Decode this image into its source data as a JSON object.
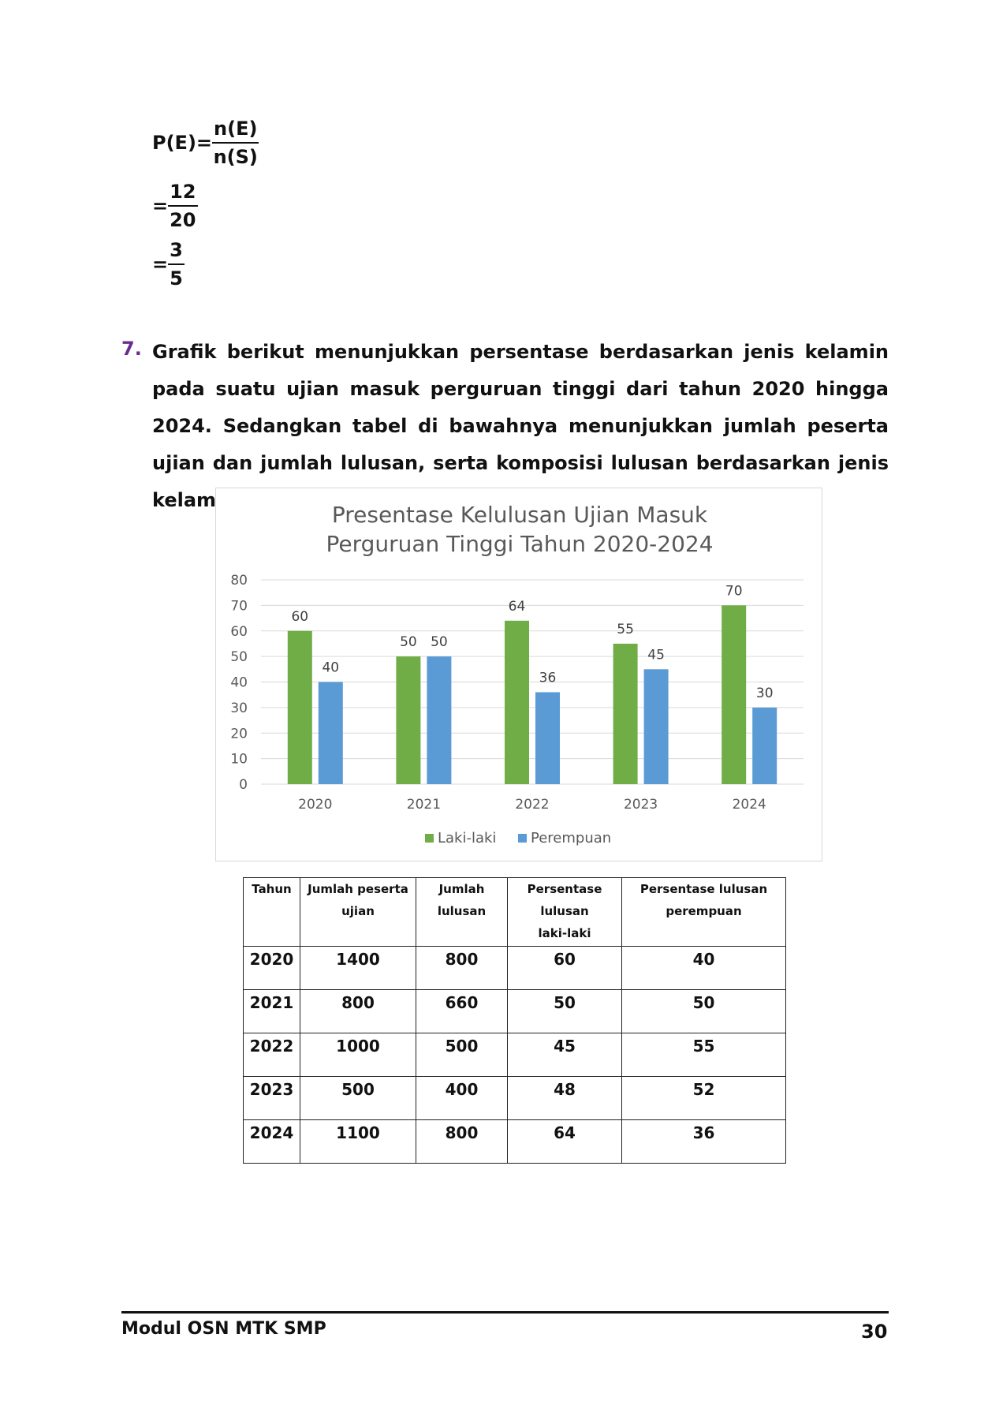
{
  "formula": {
    "lhs": "P(E)=",
    "num1": "n(E)",
    "den1": "n(S)",
    "eq2": "=",
    "num2": "12",
    "den2": "20",
    "eq3": "=",
    "num3": "3",
    "den3": "5"
  },
  "question": {
    "number": "7.",
    "text": "Grafik berikut menunjukkan persentase berdasarkan jenis kelamin pada suatu ujian masuk perguruan tinggi dari tahun 2020 hingga 2024. Sedangkan tabel di bawahnya menunjukkan jumlah peserta ujian dan jumlah lulusan, serta komposisi lulusan berdasarkan jenis kelamin."
  },
  "chart_data": {
    "type": "bar",
    "title": "Presentase Kelulusan Ujian Masuk Perguruan Tinggi Tahun 2020-2024",
    "title_lines": [
      "Presentase Kelulusan Ujian Masuk",
      "Perguruan Tinggi Tahun 2020-2024"
    ],
    "categories": [
      "2020",
      "2021",
      "2022",
      "2023",
      "2024"
    ],
    "series": [
      {
        "name": "Laki-laki",
        "values": [
          60,
          50,
          64,
          55,
          70
        ],
        "color": "#70ad47"
      },
      {
        "name": "Perempuan",
        "values": [
          40,
          50,
          36,
          45,
          30
        ],
        "color": "#5b9bd5"
      }
    ],
    "ylim": [
      0,
      80
    ],
    "yticks": [
      0,
      10,
      20,
      30,
      40,
      50,
      60,
      70,
      80
    ],
    "grid": true,
    "legend": "bottom",
    "xlabel": "",
    "ylabel": ""
  },
  "table": {
    "headers": [
      [
        "Tahun"
      ],
      [
        "Jumlah peserta",
        "ujian"
      ],
      [
        "Jumlah",
        "lulusan"
      ],
      [
        "Persentase",
        "lulusan",
        "laki-laki"
      ],
      [
        "Persentase lulusan",
        "perempuan"
      ]
    ],
    "rows": [
      [
        "2020",
        "1400",
        "800",
        "60",
        "40"
      ],
      [
        "2021",
        "800",
        "660",
        "50",
        "50"
      ],
      [
        "2022",
        "1000",
        "500",
        "45",
        "55"
      ],
      [
        "2023",
        "500",
        "400",
        "48",
        "52"
      ],
      [
        "2024",
        "1100",
        "800",
        "64",
        "36"
      ]
    ]
  },
  "footer": {
    "left": "Modul OSN MTK SMP",
    "page": "30"
  }
}
